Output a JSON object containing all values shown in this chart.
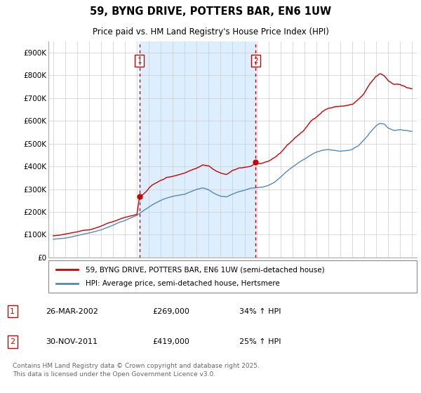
{
  "title": "59, BYNG DRIVE, POTTERS BAR, EN6 1UW",
  "subtitle": "Price paid vs. HM Land Registry's House Price Index (HPI)",
  "legend_line1": "59, BYNG DRIVE, POTTERS BAR, EN6 1UW (semi-detached house)",
  "legend_line2": "HPI: Average price, semi-detached house, Hertsmere",
  "footer": "Contains HM Land Registry data © Crown copyright and database right 2025.\nThis data is licensed under the Open Government Licence v3.0.",
  "sale1_label": "1",
  "sale2_label": "2",
  "sale1_date": "26-MAR-2002",
  "sale1_price": "£269,000",
  "sale1_hpi": "34% ↑ HPI",
  "sale2_date": "30-NOV-2011",
  "sale2_price": "£419,000",
  "sale2_hpi": "25% ↑ HPI",
  "red_color": "#cc0000",
  "blue_color": "#5588bb",
  "vline_color": "#cc0000",
  "shade_color": "#ddeeff",
  "plot_bg": "#ffffff",
  "grid_color": "#cccccc",
  "ylim": [
    0,
    950000
  ],
  "yticks": [
    0,
    100000,
    200000,
    300000,
    400000,
    500000,
    600000,
    700000,
    800000,
    900000
  ],
  "sale1_x": 2002.21,
  "sale2_x": 2011.92,
  "sale1_y": 269000,
  "sale2_y": 419000,
  "xlim_left": 1994.6,
  "xlim_right": 2025.4
}
